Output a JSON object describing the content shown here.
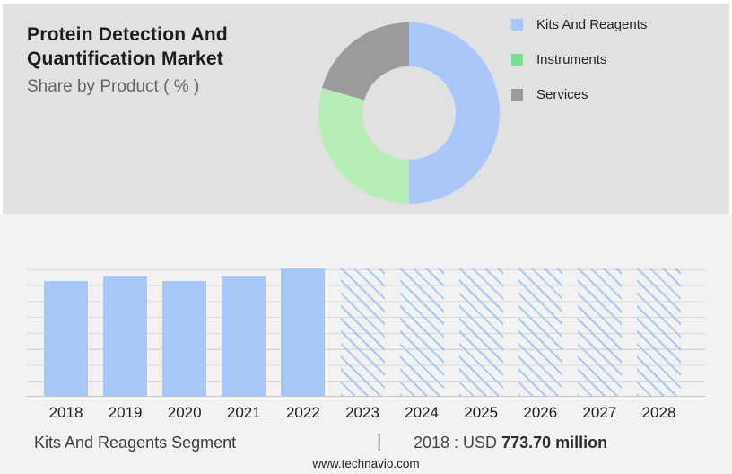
{
  "header": {
    "title": "Protein Detection And Quantification Market",
    "title_lines": [
      "Protein Detection And",
      "Quantification Market"
    ],
    "subtitle": "Share by Product ( % )"
  },
  "legend": {
    "items": [
      {
        "label": "Kits And Reagents",
        "swatch_color": "#a6c8f8"
      },
      {
        "label": "Instruments",
        "swatch_color": "#77e091"
      },
      {
        "label": "Services",
        "swatch_color": "#9a9a9a"
      }
    ]
  },
  "footer": {
    "segment_label": "Kits And Reagents Segment",
    "separator": "|",
    "value_prefix": "2018 : USD",
    "value_bold": "773.70 million",
    "website": "www.technavio.com"
  },
  "colors": {
    "top_panel_bg": "#e1e1e1",
    "bottom_panel_bg": "#f2f2f3",
    "bar_fill": "#a6c7f7",
    "hatch_stroke": "#a9c7f0",
    "gridline": "#d9d9d9",
    "baseline": "#c6c6c6"
  },
  "chart_data": [
    {
      "type": "pie",
      "donut": true,
      "title": "Share by Product ( % )",
      "legend_position": "right",
      "start_angle_deg": 0,
      "segments": [
        {
          "label": "Kits And Reagents",
          "percent": 50.0,
          "color": "#a9c7f8"
        },
        {
          "label": "Instruments",
          "percent": 29.5,
          "color": "#b7edb7"
        },
        {
          "label": "Services",
          "percent": 20.5,
          "color": "#9b9b9b"
        }
      ],
      "note": "percent values estimated from arc angles; no numeric labels shown in image"
    },
    {
      "type": "bar",
      "title": "",
      "xlabel": "",
      "ylabel": "",
      "grid": "horizontal",
      "categories": [
        "2018",
        "2019",
        "2020",
        "2021",
        "2022",
        "2023",
        "2024",
        "2025",
        "2026",
        "2027",
        "2028"
      ],
      "series": [
        {
          "name": "Kits And Reagents",
          "values_usd_million": [
            773.7,
            810,
            770,
            810,
            860,
            null,
            null,
            null,
            null,
            null,
            null
          ]
        }
      ],
      "bar_height_fractions": [
        0.9,
        0.94,
        0.9,
        0.94,
        1.0,
        1.0,
        1.0,
        1.0,
        1.0,
        1.0,
        1.0
      ],
      "forecast_categories": [
        "2023",
        "2024",
        "2025",
        "2026",
        "2027",
        "2028"
      ],
      "annotation": "2018 : USD 773.70 million",
      "note": "2019-2022 values estimated from bar heights relative to labeled 2018 value; 2023-2028 drawn as full-height hatched forecast bars with no values displayed"
    }
  ]
}
